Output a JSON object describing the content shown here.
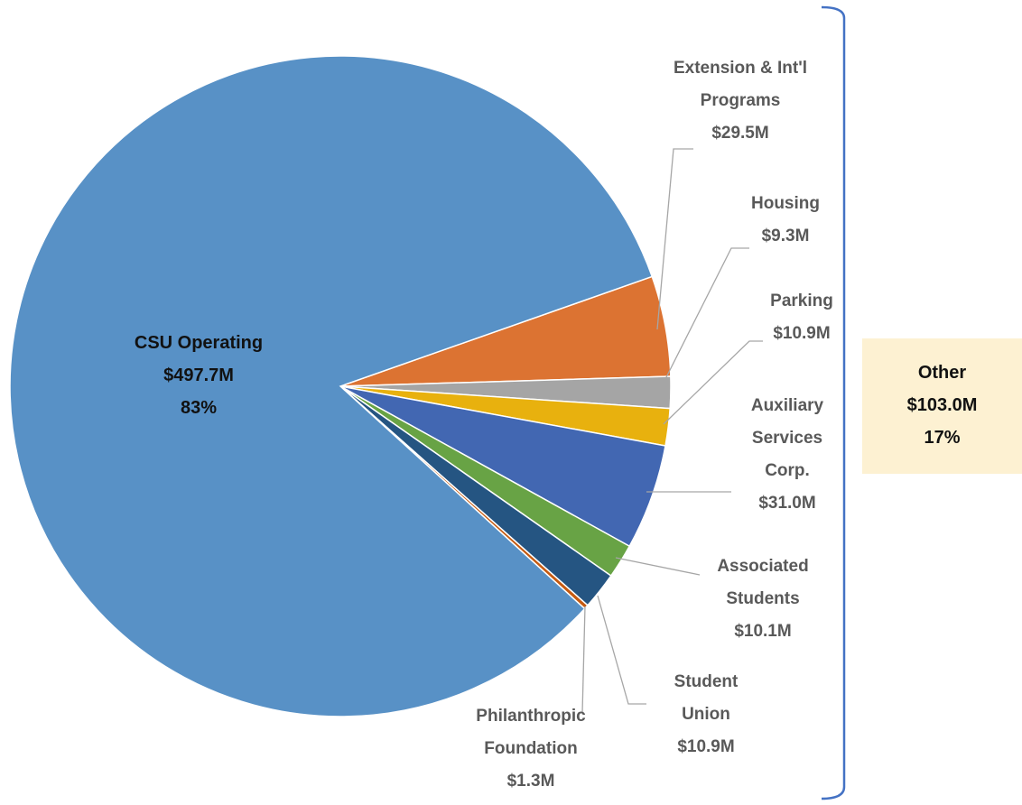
{
  "chart_data": {
    "type": "pie",
    "categories": [
      "Extension & Int'l Programs",
      "Housing",
      "Parking",
      "Auxiliary Services Corp.",
      "Associated Students",
      "Student Union",
      "Philanthropic Foundation",
      "CSU Operating"
    ],
    "values": [
      29.5,
      9.3,
      10.9,
      31.0,
      10.1,
      10.9,
      1.3,
      497.7
    ],
    "value_labels": [
      "$29.5M",
      "$9.3M",
      "$10.9M",
      "$31.0M",
      "$10.1M",
      "$10.9M",
      "$1.3M",
      "$497.7M"
    ],
    "colors": [
      "#dc7332",
      "#a5a5a5",
      "#e8b10e",
      "#4267b2",
      "#68a345",
      "#255582",
      "#c55a11",
      "#5891c6"
    ],
    "main_percent_label": "83%",
    "group": {
      "label": "Other",
      "value": 103.0,
      "value_label": "$103.0M",
      "percent_label": "17%"
    }
  }
}
